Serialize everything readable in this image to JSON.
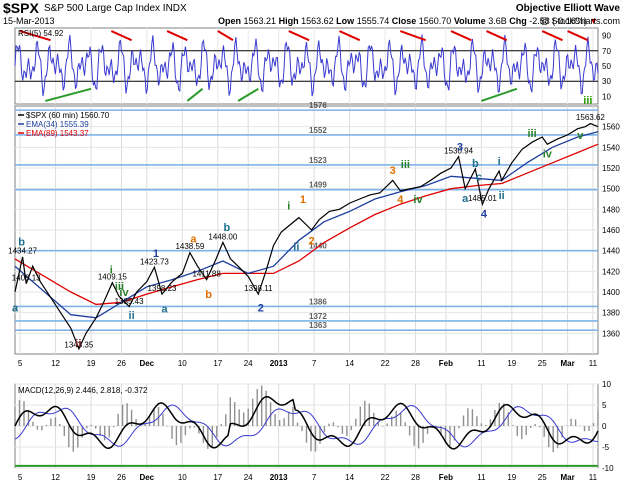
{
  "header": {
    "symbol": "$SPX",
    "name": "S&P 500 Large Cap Index",
    "exchange": "INDX",
    "date": "15-Mar-2013",
    "open_label": "Open",
    "open": "1563.21",
    "high_label": "High",
    "high": "1563.62",
    "low_label": "Low",
    "low": "1555.74",
    "close_label": "Close",
    "close": "1560.70",
    "volume_label": "Volume",
    "volume": "3.6B",
    "chg_label": "Chg",
    "chg": "-2.53 (-0.16%)",
    "chg_arrow": "▼",
    "watermark1": "Objective Elliott Wave",
    "watermark2": "@ StockCharts.com"
  },
  "chart_data": [
    {
      "type": "line",
      "panel": "RSI",
      "title": "RSI(5) 54.92",
      "ylim": [
        0,
        100
      ],
      "y_ticks": [
        "90",
        "70",
        "50",
        "30",
        "10"
      ],
      "reference_lines": [
        70,
        30
      ],
      "series": [
        {
          "name": "RSI(5)",
          "last": 54.92
        }
      ],
      "colors": {
        "line": "#3a3ad0",
        "overbought_fill": "#000000",
        "oversold_fill": "#000000",
        "top_marks": "#e00000",
        "bottom_marks": "#2a9a2a"
      }
    },
    {
      "type": "line",
      "panel": "price",
      "title": "$SPX (60 min) 1560.70",
      "ylim": [
        1340,
        1580
      ],
      "y_ticks": [
        "1560",
        "1540",
        "1520",
        "1500",
        "1480",
        "1460",
        "1440",
        "1420",
        "1400",
        "1380",
        "1360"
      ],
      "x_ticks": [
        "5",
        "12",
        "19",
        "26",
        "Dec",
        "10",
        "17",
        "24",
        "2013",
        "7",
        "14",
        "22",
        "28",
        "Feb",
        "11",
        "19",
        "25",
        "Mar",
        "11"
      ],
      "series": [
        {
          "name": "$SPX (60 min)",
          "last": 1560.7,
          "color": "#000000"
        },
        {
          "name": "EMA(34)",
          "last": 1555.39,
          "color": "#1f3f9f"
        },
        {
          "name": "EMA(89)",
          "last": 1543.37,
          "color": "#e00000"
        }
      ],
      "legend": [
        {
          "label": "$SPX (60 min) 1560.70",
          "color": "#000000"
        },
        {
          "label": "EMA(34) 1555.39",
          "color": "#1f3f9f"
        },
        {
          "label": "EMA(89) 1543.37",
          "color": "#e00000"
        }
      ],
      "horizontal_levels": [
        "1576",
        "1552",
        "1523",
        "1499",
        "1440",
        "1386",
        "1372",
        "1363"
      ],
      "horizontal_level_values": [
        1576,
        1552,
        1523,
        1499,
        1440,
        1386,
        1372,
        1363
      ],
      "annotations": [
        {
          "text": "1434.27",
          "x": 0.5,
          "y": 1434.27,
          "kind": "price"
        },
        {
          "text": "1408.13",
          "x": 1.2,
          "y": 1408.13,
          "kind": "price"
        },
        {
          "text": "1343.35",
          "x": 11.6,
          "y": 1343.35,
          "kind": "price"
        },
        {
          "text": "1409.15",
          "x": 18.2,
          "y": 1409.15,
          "kind": "price"
        },
        {
          "text": "1385.43",
          "x": 21.5,
          "y": 1385.43,
          "kind": "price"
        },
        {
          "text": "1423.73",
          "x": 26.5,
          "y": 1423.73,
          "kind": "price"
        },
        {
          "text": "1398.23",
          "x": 28.0,
          "y": 1398.23,
          "kind": "price"
        },
        {
          "text": "1438.59",
          "x": 33.5,
          "y": 1438.59,
          "kind": "price"
        },
        {
          "text": "1411.88",
          "x": 36.8,
          "y": 1411.88,
          "kind": "price"
        },
        {
          "text": "1448.00",
          "x": 40.0,
          "y": 1448.0,
          "kind": "price"
        },
        {
          "text": "1398.11",
          "x": 47.0,
          "y": 1398.11,
          "kind": "price"
        },
        {
          "text": "1530.94",
          "x": 86.5,
          "y": 1530.94,
          "kind": "price"
        },
        {
          "text": "1485.01",
          "x": 91.2,
          "y": 1485.01,
          "kind": "price"
        },
        {
          "text": "1563.62",
          "x": 112.5,
          "y": 1563.62,
          "kind": "price"
        },
        {
          "text": "b",
          "x": 0.3,
          "y": 1445,
          "kind": "wave",
          "color": "#1f6f8f"
        },
        {
          "text": "a",
          "x": -1,
          "y": 1381,
          "kind": "wave",
          "color": "#1f6f8f"
        },
        {
          "text": "ii",
          "x": 11.5,
          "y": 1347,
          "kind": "wave",
          "color": "#7a1f1f"
        },
        {
          "text": "i",
          "x": 18.0,
          "y": 1418,
          "kind": "wave",
          "color": "#2a7f2a"
        },
        {
          "text": "iii",
          "x": 19.6,
          "y": 1402,
          "kind": "wave",
          "color": "#2a7f2a"
        },
        {
          "text": "iv",
          "x": 20.5,
          "y": 1396,
          "kind": "wave",
          "color": "#2a7f2a"
        },
        {
          "text": "ii",
          "x": 22.0,
          "y": 1374,
          "kind": "wave",
          "color": "#1f6f8f"
        },
        {
          "text": "1",
          "x": 26.8,
          "y": 1434,
          "kind": "wave",
          "color": "#1f3f9f"
        },
        {
          "text": "a",
          "x": 28.5,
          "y": 1380,
          "kind": "wave",
          "color": "#1f6f8f"
        },
        {
          "text": "a",
          "x": 34.2,
          "y": 1448,
          "kind": "wave",
          "color": "#e07000"
        },
        {
          "text": "b",
          "x": 37.2,
          "y": 1394,
          "kind": "wave",
          "color": "#e07000"
        },
        {
          "text": "b",
          "x": 40.8,
          "y": 1459,
          "kind": "wave",
          "color": "#1f6f8f"
        },
        {
          "text": "2",
          "x": 47.5,
          "y": 1381,
          "kind": "wave",
          "color": "#1f3f9f"
        },
        {
          "text": "i",
          "x": 53.0,
          "y": 1480,
          "kind": "wave",
          "color": "#2a7f2a"
        },
        {
          "text": "1",
          "x": 55.8,
          "y": 1486,
          "kind": "wave",
          "color": "#e07000"
        },
        {
          "text": "ii",
          "x": 54.5,
          "y": 1440,
          "kind": "wave",
          "color": "#1f6f8f"
        },
        {
          "text": "2",
          "x": 57.5,
          "y": 1446,
          "kind": "wave",
          "color": "#e07000"
        },
        {
          "text": "3",
          "x": 73.5,
          "y": 1514,
          "kind": "wave",
          "color": "#e07000"
        },
        {
          "text": "iii",
          "x": 76.0,
          "y": 1520,
          "kind": "wave",
          "color": "#2a7f2a"
        },
        {
          "text": "4",
          "x": 75.0,
          "y": 1486,
          "kind": "wave",
          "color": "#e07000"
        },
        {
          "text": "iv",
          "x": 78.5,
          "y": 1486,
          "kind": "wave",
          "color": "#2a7f2a"
        },
        {
          "text": "3",
          "x": 86.8,
          "y": 1537,
          "kind": "wave",
          "color": "#1f3f9f"
        },
        {
          "text": "b",
          "x": 89.8,
          "y": 1521,
          "kind": "wave",
          "color": "#1f6f8f"
        },
        {
          "text": "a",
          "x": 87.8,
          "y": 1487,
          "kind": "wave",
          "color": "#1f6f8f"
        },
        {
          "text": "c",
          "x": 90.5,
          "y": 1508,
          "kind": "wave",
          "color": "#1f6f8f"
        },
        {
          "text": "4",
          "x": 91.5,
          "y": 1472,
          "kind": "wave",
          "color": "#1f3f9f"
        },
        {
          "text": "i",
          "x": 94.5,
          "y": 1523,
          "kind": "wave",
          "color": "#1f6f8f"
        },
        {
          "text": "ii",
          "x": 95.0,
          "y": 1490,
          "kind": "wave",
          "color": "#1f6f8f"
        },
        {
          "text": "iii",
          "x": 101.0,
          "y": 1550,
          "kind": "wave",
          "color": "#2a7f2a"
        },
        {
          "text": "iv",
          "x": 104.0,
          "y": 1530,
          "kind": "wave",
          "color": "#2a7f2a"
        },
        {
          "text": "v",
          "x": 110.5,
          "y": 1548,
          "kind": "wave",
          "color": "#2a7f2a"
        },
        {
          "text": "iii",
          "x": 112.0,
          "y": 1582,
          "kind": "wave",
          "color": "#2a9a00"
        }
      ],
      "price_path_x": [
        -1.0,
        0.5,
        1.2,
        2.5,
        4.0,
        6.0,
        8.0,
        10.0,
        11.6,
        13.0,
        15.0,
        16.5,
        18.2,
        19.5,
        21.5,
        23.0,
        25.0,
        26.5,
        28.0,
        30.0,
        32.0,
        33.5,
        35.0,
        36.8,
        38.5,
        40.0,
        41.5,
        43.0,
        45.0,
        47.0,
        48.5,
        50.0,
        51.5,
        53.0,
        55.0,
        57.5,
        59.0,
        61.0,
        63.0,
        65.0,
        67.0,
        69.0,
        71.0,
        73.5,
        75.0,
        77.0,
        79.0,
        81.0,
        83.0,
        85.0,
        86.5,
        87.8,
        89.8,
        91.2,
        92.5,
        94.5,
        95.0,
        97.0,
        99.0,
        101.0,
        103.0,
        104.0,
        106.0,
        108.0,
        110.0,
        111.5,
        112.5,
        114.0
      ],
      "price_path_y": [
        1400,
        1434,
        1408,
        1425,
        1410,
        1395,
        1380,
        1365,
        1345,
        1360,
        1375,
        1390,
        1409,
        1396,
        1386,
        1400,
        1410,
        1424,
        1398,
        1410,
        1418,
        1438,
        1425,
        1412,
        1430,
        1448,
        1432,
        1425,
        1415,
        1398,
        1420,
        1445,
        1458,
        1464,
        1472,
        1460,
        1470,
        1478,
        1480,
        1486,
        1490,
        1494,
        1496,
        1508,
        1498,
        1500,
        1502,
        1508,
        1515,
        1520,
        1531,
        1500,
        1519,
        1485,
        1500,
        1517,
        1508,
        1525,
        1538,
        1545,
        1550,
        1543,
        1548,
        1552,
        1558,
        1560,
        1563,
        1560
      ],
      "ema34_path_x": [
        -1.0,
        10.0,
        15.0,
        20.0,
        25.0,
        30.0,
        35.0,
        40.0,
        45.0,
        50.0,
        55.0,
        60.0,
        65.0,
        70.0,
        75.0,
        80.0,
        85.0,
        90.0,
        95.0,
        100.0,
        105.0,
        110.0,
        114.0
      ],
      "ema34_path_y": [
        1425,
        1378,
        1375,
        1390,
        1405,
        1412,
        1420,
        1430,
        1418,
        1425,
        1450,
        1468,
        1478,
        1490,
        1497,
        1503,
        1512,
        1510,
        1508,
        1525,
        1540,
        1550,
        1555
      ],
      "ema89_path_x": [
        -1.0,
        10.0,
        15.0,
        20.0,
        25.0,
        30.0,
        35.0,
        40.0,
        45.0,
        50.0,
        55.0,
        60.0,
        65.0,
        70.0,
        75.0,
        80.0,
        85.0,
        90.0,
        95.0,
        100.0,
        105.0,
        110.0,
        114.0
      ],
      "ema89_path_y": [
        1432,
        1400,
        1388,
        1390,
        1398,
        1405,
        1412,
        1418,
        1418,
        1418,
        1430,
        1448,
        1462,
        1475,
        1485,
        1493,
        1500,
        1503,
        1505,
        1515,
        1525,
        1535,
        1543
      ]
    },
    {
      "type": "line",
      "panel": "MACD",
      "title": "MACD(12,26,9) 2.446, 2.818, -0.372",
      "ylim": [
        -10,
        10
      ],
      "y_ticks": [
        "10",
        "5",
        "0",
        "-5",
        "-10"
      ],
      "series": [
        {
          "name": "MACD(12,26,9)",
          "last": 2.446,
          "color": "#000000"
        },
        {
          "name": "Signal",
          "last": 2.818,
          "color": "#3a3ad0"
        },
        {
          "name": "Histogram",
          "last": -0.372,
          "color": "#909090"
        }
      ]
    }
  ],
  "grid": true
}
